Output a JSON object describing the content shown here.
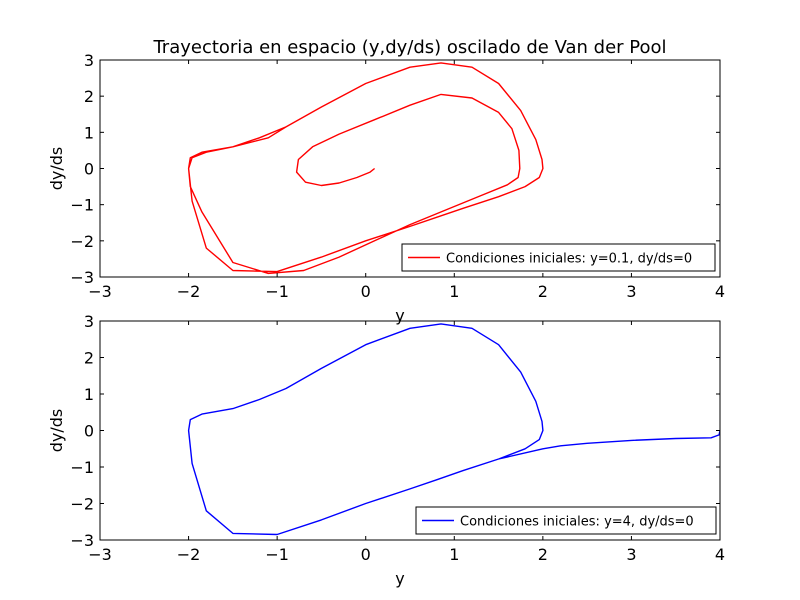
{
  "figure": {
    "title": "Trayectoria en espacio (y,dy/ds) oscilado de Van der Pool"
  },
  "chart_data": [
    {
      "type": "line",
      "title": "Trayectoria en espacio (y,dy/ds) oscilado de Van der Pool",
      "xlabel": "y",
      "ylabel": "dy/ds",
      "xlim": [
        -3,
        4
      ],
      "ylim": [
        -3,
        3
      ],
      "xticks": [
        "−3",
        "−2",
        "−1",
        "0",
        "1",
        "2",
        "3",
        "4"
      ],
      "yticks": [
        "−3",
        "−2",
        "−1",
        "0",
        "1",
        "2",
        "3"
      ],
      "grid": false,
      "legend": "lower-right",
      "series": [
        {
          "name": "Condiciones iniciales: y=0.1, dy/ds=0",
          "color": "#ff0000",
          "x": [
            0.1,
            0.05,
            -0.1,
            -0.3,
            -0.5,
            -0.68,
            -0.78,
            -0.76,
            -0.6,
            -0.3,
            0.1,
            0.5,
            0.85,
            1.2,
            1.5,
            1.65,
            1.73,
            1.74,
            1.72,
            1.6,
            1.3,
            0.9,
            0.5,
            0.1,
            -0.3,
            -0.7,
            -1.1,
            -1.5,
            -1.85,
            -1.98,
            -2.0,
            -1.96,
            -1.8,
            -1.5,
            -1.2,
            -0.9,
            -0.5,
            0.0,
            0.5,
            0.85,
            1.2,
            1.5,
            1.75,
            1.92,
            1.99,
            2.0,
            1.96,
            1.8,
            1.5,
            1.1,
            0.8,
            0.5,
            0.0,
            -0.5,
            -1.0,
            -1.5,
            -1.8,
            -1.96,
            -2.0,
            -1.98,
            -1.85,
            -1.5,
            -1.1,
            -0.9,
            -0.5,
            0.0,
            0.5,
            0.85,
            1.2,
            1.5,
            1.75,
            1.92,
            1.99,
            2.0
          ],
          "y": [
            0.0,
            -0.1,
            -0.25,
            -0.4,
            -0.47,
            -0.38,
            -0.1,
            0.25,
            0.6,
            0.95,
            1.35,
            1.75,
            2.05,
            1.95,
            1.55,
            1.1,
            0.5,
            0.0,
            -0.25,
            -0.45,
            -0.75,
            -1.15,
            -1.55,
            -2.0,
            -2.45,
            -2.82,
            -2.9,
            -2.6,
            -1.2,
            -0.5,
            0.0,
            0.3,
            0.45,
            0.6,
            0.85,
            1.15,
            1.7,
            2.35,
            2.8,
            2.92,
            2.8,
            2.35,
            1.6,
            0.8,
            0.25,
            0.0,
            -0.25,
            -0.5,
            -0.78,
            -1.1,
            -1.35,
            -1.6,
            -2.0,
            -2.45,
            -2.85,
            -2.82,
            -2.2,
            -0.9,
            0.0,
            0.3,
            0.45,
            0.6,
            0.85,
            1.15,
            1.7,
            2.35,
            2.8,
            2.92,
            2.8,
            2.35,
            1.6,
            0.8,
            0.25,
            0.0
          ]
        }
      ]
    },
    {
      "type": "line",
      "title": "",
      "xlabel": "y",
      "ylabel": "dy/ds",
      "xlim": [
        -3,
        4
      ],
      "ylim": [
        -3,
        3
      ],
      "xticks": [
        "−3",
        "−2",
        "−1",
        "0",
        "1",
        "2",
        "3",
        "4"
      ],
      "yticks": [
        "−3",
        "−2",
        "−1",
        "0",
        "1",
        "2",
        "3"
      ],
      "grid": false,
      "legend": "lower-right",
      "series": [
        {
          "name": "Condiciones iniciales: y=4, dy/ds=0",
          "color": "#0000ff",
          "x": [
            4.0,
            3.99,
            3.9,
            3.5,
            3.0,
            2.5,
            2.2,
            2.0,
            1.5,
            1.1,
            0.8,
            0.5,
            0.0,
            -0.5,
            -1.0,
            -1.5,
            -1.8,
            -1.96,
            -2.0,
            -1.98,
            -1.85,
            -1.5,
            -1.2,
            -0.9,
            -0.5,
            0.0,
            0.5,
            0.85,
            1.2,
            1.5,
            1.75,
            1.92,
            1.99,
            2.0,
            1.96,
            1.8,
            1.5,
            1.1,
            0.8,
            0.5,
            0.0,
            -0.5,
            -1.0,
            -1.5,
            -1.8,
            -1.96,
            -2.0,
            -1.98,
            -1.85,
            -1.5,
            -1.2,
            -0.9,
            -0.5,
            0.0,
            0.5,
            0.85,
            1.2,
            1.5,
            1.75,
            1.92,
            1.99,
            2.0
          ],
          "y": [
            0.0,
            -0.12,
            -0.2,
            -0.22,
            -0.27,
            -0.35,
            -0.42,
            -0.5,
            -0.78,
            -1.1,
            -1.35,
            -1.6,
            -2.0,
            -2.45,
            -2.85,
            -2.82,
            -2.2,
            -0.9,
            0.0,
            0.3,
            0.45,
            0.6,
            0.85,
            1.15,
            1.7,
            2.35,
            2.8,
            2.92,
            2.8,
            2.35,
            1.6,
            0.8,
            0.25,
            0.0,
            -0.25,
            -0.5,
            -0.78,
            -1.1,
            -1.35,
            -1.6,
            -2.0,
            -2.45,
            -2.85,
            -2.82,
            -2.2,
            -0.9,
            0.0,
            0.3,
            0.45,
            0.6,
            0.85,
            1.15,
            1.7,
            2.35,
            2.8,
            2.92,
            2.8,
            2.35,
            1.6,
            0.8,
            0.25,
            0.0
          ]
        }
      ]
    }
  ]
}
